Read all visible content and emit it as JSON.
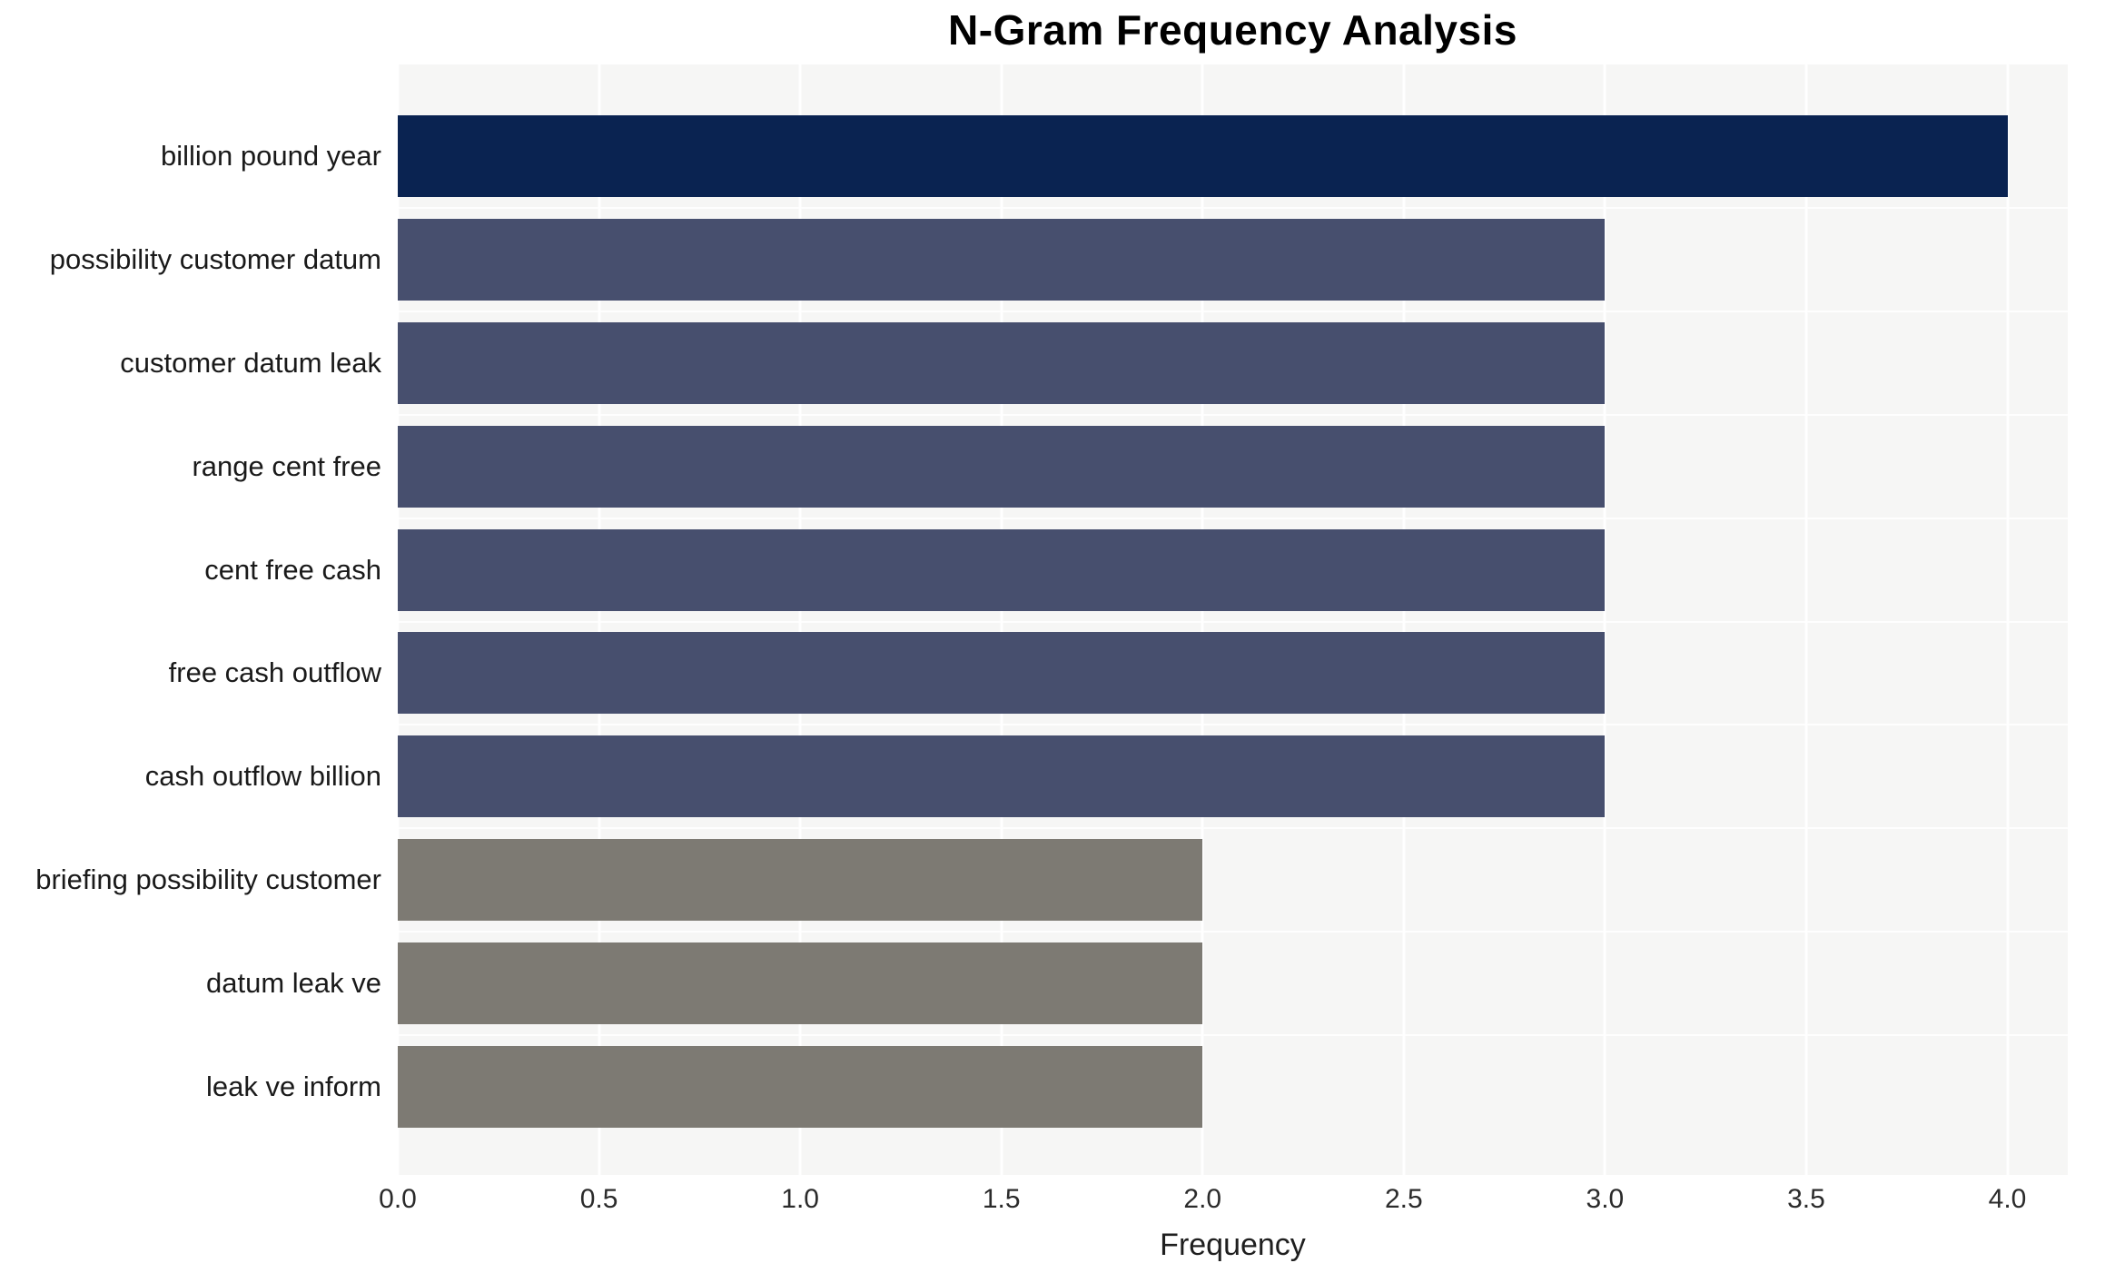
{
  "chart_data": {
    "type": "bar",
    "orientation": "horizontal",
    "title": "N-Gram Frequency Analysis",
    "xlabel": "Frequency",
    "ylabel": "",
    "categories": [
      "billion pound year",
      "possibility customer datum",
      "customer datum leak",
      "range cent free",
      "cent free cash",
      "free cash outflow",
      "cash outflow billion",
      "briefing possibility customer",
      "datum leak ve",
      "leak ve inform"
    ],
    "values": [
      4,
      3,
      3,
      3,
      3,
      3,
      3,
      2,
      2,
      2
    ],
    "xlim": [
      0,
      4.15
    ],
    "xticks": [
      "0.0",
      "0.5",
      "1.0",
      "1.5",
      "2.0",
      "2.5",
      "3.0",
      "3.5",
      "4.0"
    ],
    "xtick_values": [
      0,
      0.5,
      1,
      1.5,
      2,
      2.5,
      3,
      3.5,
      4
    ],
    "grid": true,
    "legend": "none",
    "bar_colors": [
      "#0a2351",
      "#474f6e",
      "#474f6e",
      "#474f6e",
      "#474f6e",
      "#474f6e",
      "#474f6e",
      "#7d7a73",
      "#7d7a73",
      "#7d7a73"
    ],
    "colors": {
      "plot_background": "#f6f6f5",
      "gridline": "#ffffff",
      "title_text": "#000000",
      "axis_text": "#2b2b2b",
      "category_text": "#1a1a1a"
    }
  }
}
